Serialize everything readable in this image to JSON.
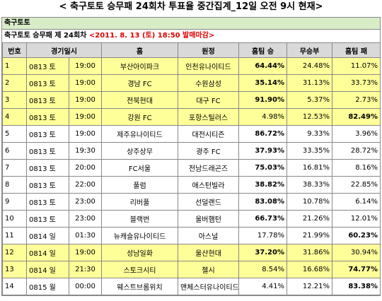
{
  "title": "< 축구토토 승무패 24회차 투표율 중간집계_12일 오전 9시 현재>",
  "section": "축구토토",
  "round": {
    "name": "축구토토 승무패 제 24회차",
    "deadline": "<2011. 8. 13 (토) 18:50 발매마감>"
  },
  "table": {
    "headers": [
      "번호",
      "경기일시",
      "홈",
      "원정",
      "홈팀 승",
      "무승부",
      "홈팀 패"
    ],
    "rows": [
      [
        1,
        "0813 토",
        "19:00",
        "부산아이파크",
        "인천유나이티드",
        "64.44%",
        "24.48%",
        "11.07%"
      ],
      [
        2,
        "0813 토",
        "19:00",
        "경남 FC",
        "수원삼성",
        "35.14%",
        "31.13%",
        "33.73%"
      ],
      [
        3,
        "0813 토",
        "19:00",
        "전북현대",
        "대구 FC",
        "91.90%",
        "5.37%",
        "2.73%"
      ],
      [
        4,
        "0813 토",
        "19:00",
        "강원 FC",
        "포항스틸러스",
        "4.98%",
        "12.53%",
        "82.49%"
      ],
      [
        5,
        "0813 토",
        "19:00",
        "제주유나이티드",
        "대전시티즌",
        "86.72%",
        "9.33%",
        "3.96%"
      ],
      [
        6,
        "0813 토",
        "19:30",
        "상주상무",
        "광주 FC",
        "37.93%",
        "33.35%",
        "28.72%"
      ],
      [
        7,
        "0813 토",
        "20:00",
        "FC서울",
        "전남드래곤즈",
        "75.03%",
        "16.81%",
        "8.16%"
      ],
      [
        8,
        "0813 토",
        "22:00",
        "풀럼",
        "애스턴빌라",
        "38.82%",
        "38.33%",
        "22.85%"
      ],
      [
        9,
        "0813 토",
        "23:00",
        "리버풀",
        "선덜랜드",
        "83.08%",
        "10.78%",
        "6.14%"
      ],
      [
        10,
        "0813 토",
        "23:00",
        "블랙번",
        "울버햄턴",
        "66.73%",
        "21.26%",
        "12.01%"
      ],
      [
        11,
        "0814 일",
        "01:30",
        "뉴캐슬유나이티드",
        "아스널",
        "17.78%",
        "21.99%",
        "60.23%"
      ],
      [
        12,
        "0814 일",
        "19:00",
        "성남일화",
        "울산현대",
        "37.20%",
        "31.86%",
        "30.94%"
      ],
      [
        13,
        "0814 일",
        "21:30",
        "스토크시티",
        "첼시",
        "8.54%",
        "16.68%",
        "74.77%"
      ],
      [
        14,
        "0815 월",
        "00:00",
        "웨스트브롬위치",
        "맨체스터유나이티드",
        "4.41%",
        "12.21%",
        "83.38%"
      ]
    ]
  }
}
